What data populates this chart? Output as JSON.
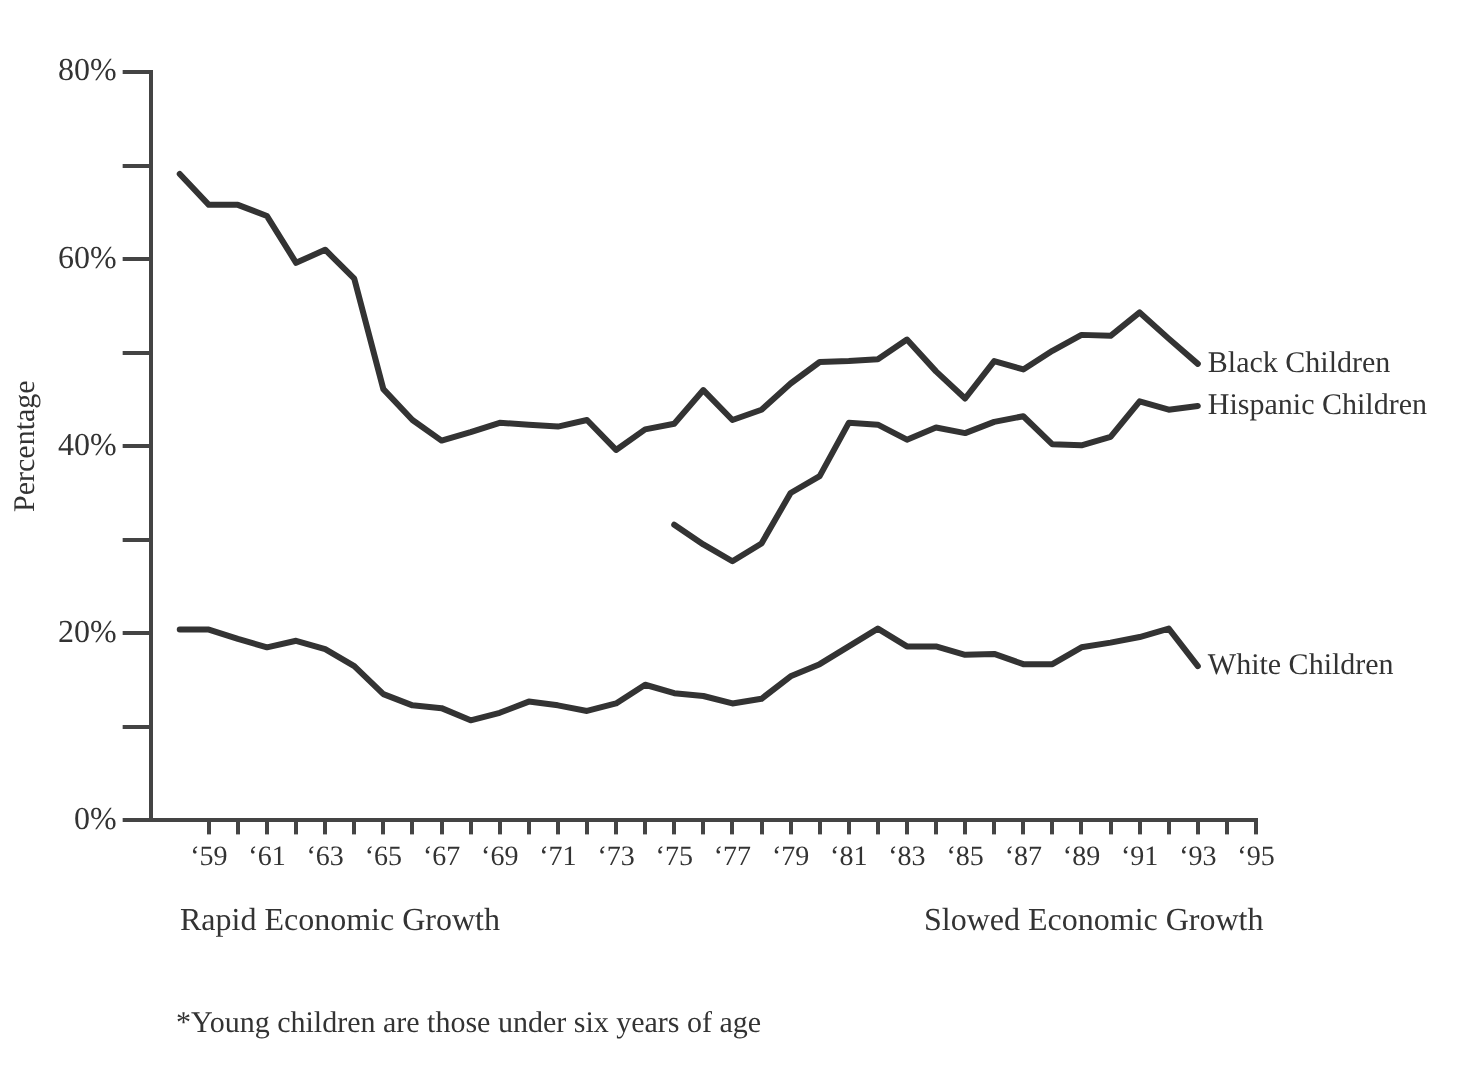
{
  "chart_data": {
    "type": "line",
    "ylabel": "Percentage",
    "x": [
      58,
      59,
      60,
      61,
      62,
      63,
      64,
      65,
      66,
      67,
      68,
      69,
      70,
      71,
      72,
      73,
      74,
      75,
      76,
      77,
      78,
      79,
      80,
      81,
      82,
      83,
      84,
      85,
      86,
      87,
      88,
      89,
      90,
      91,
      92,
      93
    ],
    "series": [
      {
        "name": "Black Children",
        "color": "#333333",
        "values": [
          69.1,
          65.8,
          65.8,
          64.6,
          59.6,
          61,
          57.9,
          46.1,
          42.8,
          40.6,
          41.5,
          42.5,
          42.3,
          42.1,
          42.8,
          39.6,
          41.8,
          42.4,
          46,
          42.8,
          43.9,
          46.7,
          49,
          49.1,
          49.3,
          51.4,
          48,
          45.1,
          49.1,
          48.2,
          50.2,
          51.9,
          51.8,
          54.3,
          51.5,
          48.8
        ]
      },
      {
        "name": "Hispanic Children",
        "color": "#333333",
        "values": [
          null,
          null,
          null,
          null,
          null,
          null,
          null,
          null,
          null,
          null,
          null,
          null,
          null,
          null,
          null,
          null,
          null,
          31.6,
          29.5,
          27.7,
          29.6,
          35,
          36.8,
          42.5,
          42.3,
          40.7,
          42,
          41.4,
          42.6,
          43.2,
          40.2,
          40.1,
          41,
          44.8,
          43.9,
          44.3
        ]
      },
      {
        "name": "White Children",
        "color": "#333333",
        "values": [
          20.4,
          20.4,
          19.4,
          18.5,
          19.2,
          18.3,
          16.5,
          13.5,
          12.3,
          12,
          10.7,
          11.5,
          12.7,
          12.3,
          11.7,
          12.5,
          14.5,
          13.6,
          13.3,
          12.5,
          13,
          15.4,
          16.7,
          18.6,
          20.5,
          18.6,
          18.6,
          17.7,
          17.8,
          16.7,
          16.7,
          18.5,
          19,
          19.6,
          20.5,
          16.5
        ]
      }
    ],
    "xlim": [
      57,
      95
    ],
    "xticks": [
      {
        "value": 59,
        "label": "‘59"
      },
      {
        "value": 60,
        "label": null
      },
      {
        "value": 61,
        "label": "‘61"
      },
      {
        "value": 62,
        "label": null
      },
      {
        "value": 63,
        "label": "‘63"
      },
      {
        "value": 64,
        "label": null
      },
      {
        "value": 65,
        "label": "‘65"
      },
      {
        "value": 66,
        "label": null
      },
      {
        "value": 67,
        "label": "‘67"
      },
      {
        "value": 68,
        "label": null
      },
      {
        "value": 69,
        "label": "‘69"
      },
      {
        "value": 70,
        "label": null
      },
      {
        "value": 71,
        "label": "‘71"
      },
      {
        "value": 72,
        "label": null
      },
      {
        "value": 73,
        "label": "‘73"
      },
      {
        "value": 74,
        "label": null
      },
      {
        "value": 75,
        "label": "‘75"
      },
      {
        "value": 76,
        "label": null
      },
      {
        "value": 77,
        "label": "‘77"
      },
      {
        "value": 78,
        "label": null
      },
      {
        "value": 79,
        "label": "‘79"
      },
      {
        "value": 80,
        "label": null
      },
      {
        "value": 81,
        "label": "‘81"
      },
      {
        "value": 82,
        "label": null
      },
      {
        "value": 83,
        "label": "‘83"
      },
      {
        "value": 84,
        "label": null
      },
      {
        "value": 85,
        "label": "‘85"
      },
      {
        "value": 86,
        "label": null
      },
      {
        "value": 87,
        "label": "‘87"
      },
      {
        "value": 88,
        "label": null
      },
      {
        "value": 89,
        "label": "‘89"
      },
      {
        "value": 90,
        "label": null
      },
      {
        "value": 91,
        "label": "‘91"
      },
      {
        "value": 92,
        "label": null
      },
      {
        "value": 93,
        "label": "‘93"
      },
      {
        "value": 94,
        "label": null
      },
      {
        "value": 95,
        "label": "‘95"
      }
    ],
    "ylim": [
      0,
      80
    ],
    "yticks": [
      {
        "value": 0,
        "label": "0%"
      },
      {
        "value": 10,
        "label": null
      },
      {
        "value": 20,
        "label": "20%"
      },
      {
        "value": 30,
        "label": null
      },
      {
        "value": 40,
        "label": "40%"
      },
      {
        "value": 50,
        "label": null
      },
      {
        "value": 60,
        "label": "60%"
      },
      {
        "value": 70,
        "label": null
      },
      {
        "value": 80,
        "label": "80%"
      }
    ],
    "grid": false,
    "legend": false,
    "marker": "none",
    "line_style": "solid",
    "annotations": [
      "Rapid Economic Growth",
      "Slowed Economic Growth",
      "*Young children are those under six years of age"
    ]
  }
}
